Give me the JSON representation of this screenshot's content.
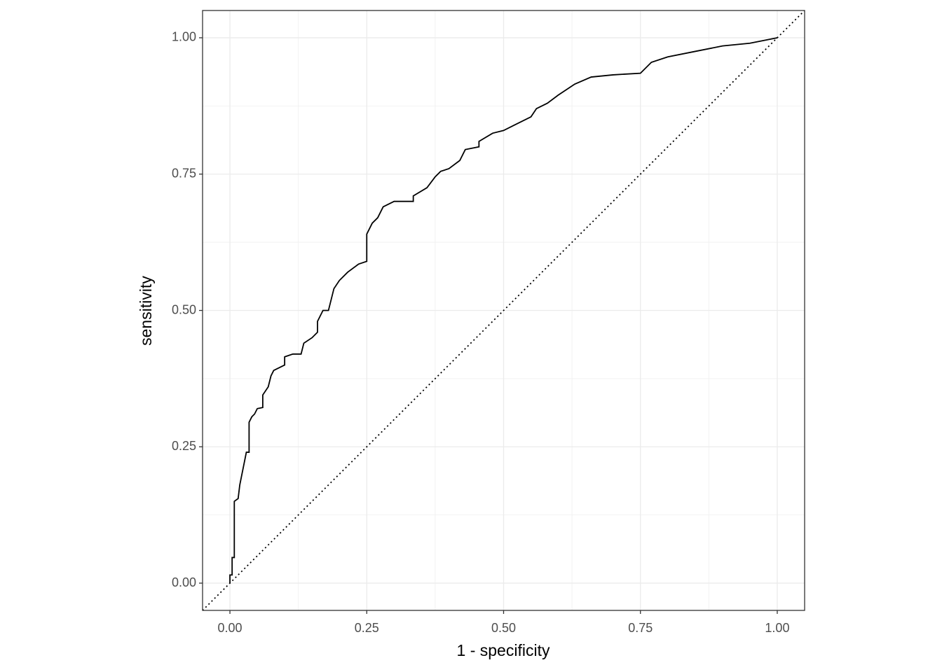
{
  "chart_data": {
    "type": "line",
    "xlabel": "1 - specificity",
    "ylabel": "sensitivity",
    "xlim": [
      -0.05,
      1.05
    ],
    "ylim": [
      -0.05,
      1.05
    ],
    "xticks": [
      {
        "value": 0,
        "label": "0.00"
      },
      {
        "value": 0.25,
        "label": "0.25"
      },
      {
        "value": 0.5,
        "label": "0.50"
      },
      {
        "value": 0.75,
        "label": "0.75"
      },
      {
        "value": 1,
        "label": "1.00"
      }
    ],
    "yticks": [
      {
        "value": 0,
        "label": "0.00"
      },
      {
        "value": 0.25,
        "label": "0.25"
      },
      {
        "value": 0.5,
        "label": "0.50"
      },
      {
        "value": 0.75,
        "label": "0.75"
      },
      {
        "value": 1,
        "label": "1.00"
      }
    ],
    "grid": true,
    "minor_grid": true,
    "diagonal": true,
    "color": "#000000",
    "x": [
      0,
      0,
      0.004,
      0.004,
      0.008,
      0.008,
      0.015,
      0.018,
      0.022,
      0.026,
      0.03,
      0.035,
      0.035,
      0.04,
      0.045,
      0.05,
      0.06,
      0.06,
      0.07,
      0.075,
      0.08,
      0.09,
      0.1,
      0.1,
      0.115,
      0.13,
      0.135,
      0.15,
      0.16,
      0.16,
      0.17,
      0.18,
      0.185,
      0.19,
      0.2,
      0.215,
      0.235,
      0.25,
      0.25,
      0.26,
      0.27,
      0.28,
      0.3,
      0.335,
      0.335,
      0.36,
      0.375,
      0.385,
      0.4,
      0.42,
      0.43,
      0.455,
      0.455,
      0.48,
      0.5,
      0.52,
      0.55,
      0.56,
      0.58,
      0.6,
      0.63,
      0.66,
      0.7,
      0.75,
      0.77,
      0.8,
      0.85,
      0.9,
      0.95,
      1.0
    ],
    "values": [
      0,
      0.015,
      0.015,
      0.047,
      0.047,
      0.15,
      0.155,
      0.18,
      0.2,
      0.22,
      0.24,
      0.24,
      0.295,
      0.305,
      0.31,
      0.32,
      0.322,
      0.345,
      0.36,
      0.38,
      0.39,
      0.395,
      0.4,
      0.415,
      0.42,
      0.42,
      0.44,
      0.45,
      0.46,
      0.48,
      0.5,
      0.5,
      0.52,
      0.54,
      0.555,
      0.57,
      0.585,
      0.59,
      0.64,
      0.66,
      0.67,
      0.69,
      0.7,
      0.7,
      0.71,
      0.725,
      0.745,
      0.755,
      0.76,
      0.775,
      0.795,
      0.8,
      0.81,
      0.825,
      0.83,
      0.84,
      0.855,
      0.87,
      0.88,
      0.895,
      0.915,
      0.928,
      0.932,
      0.935,
      0.955,
      0.965,
      0.975,
      0.985,
      0.99,
      1.0
    ]
  }
}
